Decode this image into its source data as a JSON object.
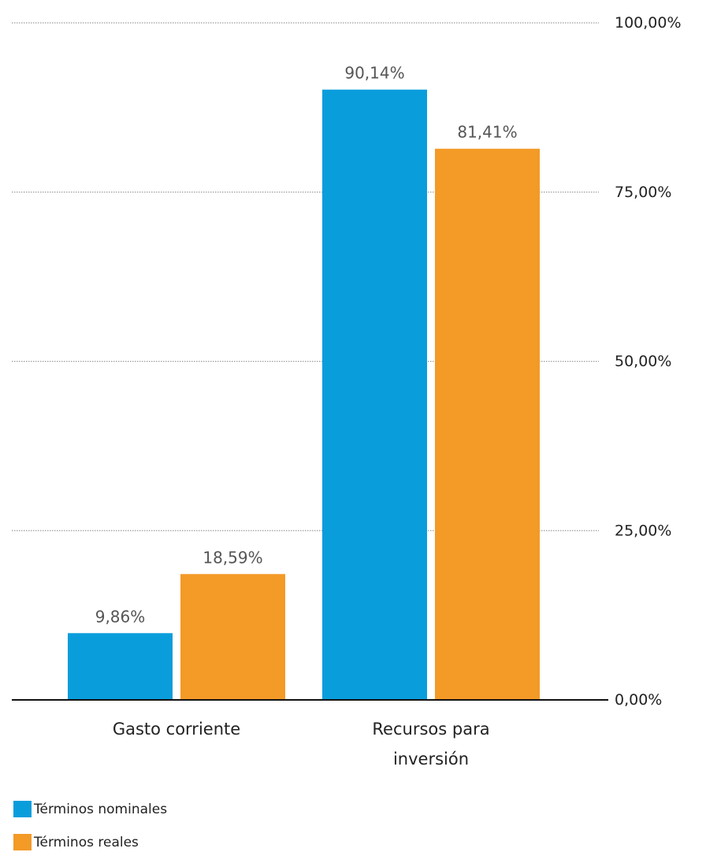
{
  "chart_data": {
    "type": "bar",
    "categories": [
      "Gasto corriente",
      "Recursos para inversión"
    ],
    "series": [
      {
        "name": "Términos nominales",
        "color": "#0a9ddc",
        "values": [
          9.86,
          90.14
        ],
        "labels": [
          "9,86%",
          "90,14%"
        ]
      },
      {
        "name": "Términos reales",
        "color": "#f39a27",
        "values": [
          18.59,
          81.41
        ],
        "labels": [
          "18,59%",
          "81,41%"
        ]
      }
    ],
    "y_ticks": [
      {
        "value": 0,
        "label": "0,00%"
      },
      {
        "value": 25,
        "label": "25,00%"
      },
      {
        "value": 50,
        "label": "50,00%"
      },
      {
        "value": 75,
        "label": "75,00%"
      },
      {
        "value": 100,
        "label": "100,00%"
      }
    ],
    "ylim": [
      0,
      100
    ],
    "y_axis_position": "right",
    "grid": true,
    "legend_position": "bottom-left",
    "title": "",
    "xlabel": "",
    "ylabel": ""
  }
}
